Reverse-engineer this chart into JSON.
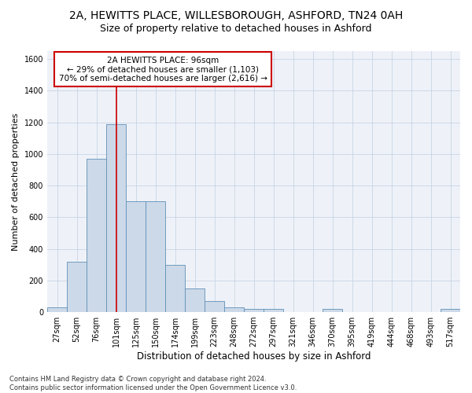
{
  "title1": "2A, HEWITTS PLACE, WILLESBOROUGH, ASHFORD, TN24 0AH",
  "title2": "Size of property relative to detached houses in Ashford",
  "xlabel": "Distribution of detached houses by size in Ashford",
  "ylabel": "Number of detached properties",
  "categories": [
    "27sqm",
    "52sqm",
    "76sqm",
    "101sqm",
    "125sqm",
    "150sqm",
    "174sqm",
    "199sqm",
    "223sqm",
    "248sqm",
    "272sqm",
    "297sqm",
    "321sqm",
    "346sqm",
    "370sqm",
    "395sqm",
    "419sqm",
    "444sqm",
    "468sqm",
    "493sqm",
    "517sqm"
  ],
  "values": [
    30,
    320,
    970,
    1190,
    700,
    700,
    300,
    150,
    70,
    30,
    20,
    20,
    0,
    0,
    20,
    0,
    0,
    0,
    0,
    0,
    20
  ],
  "bar_color": "#ccd9e8",
  "bar_edge_color": "#6090b8",
  "vline_color": "#cc0000",
  "vline_x": 3.0,
  "annotation_text": "2A HEWITTS PLACE: 96sqm\n← 29% of detached houses are smaller (1,103)\n70% of semi-detached houses are larger (2,616) →",
  "annotation_box_color": "#ffffff",
  "annotation_box_edge_color": "#cc0000",
  "ylim": [
    0,
    1650
  ],
  "yticks": [
    0,
    200,
    400,
    600,
    800,
    1000,
    1200,
    1400,
    1600
  ],
  "grid_color": "#c8d4e4",
  "bg_color": "#eef2f8",
  "footnote": "Contains HM Land Registry data © Crown copyright and database right 2024.\nContains public sector information licensed under the Open Government Licence v3.0.",
  "title1_fontsize": 10,
  "title2_fontsize": 9,
  "xlabel_fontsize": 8.5,
  "ylabel_fontsize": 8,
  "tick_fontsize": 7,
  "annotation_fontsize": 7.5,
  "footnote_fontsize": 6
}
